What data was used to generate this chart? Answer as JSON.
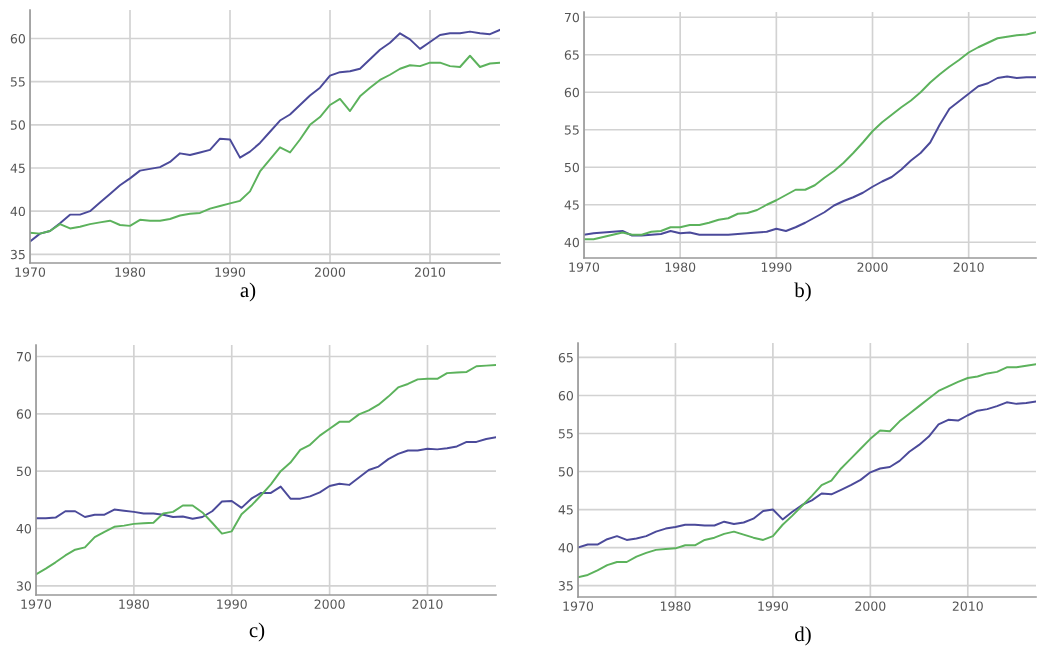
{
  "chart_data": [
    {
      "type": "line",
      "x": [
        1970,
        1971,
        1972,
        1973,
        1974,
        1975,
        1976,
        1977,
        1978,
        1979,
        1980,
        1981,
        1982,
        1983,
        1984,
        1985,
        1986,
        1987,
        1988,
        1989,
        1990,
        1991,
        1992,
        1993,
        1994,
        1995,
        1996,
        1997,
        1998,
        1999,
        2000,
        2001,
        2002,
        2003,
        2004,
        2005,
        2006,
        2007,
        2008,
        2009,
        2010,
        2011,
        2012,
        2013,
        2014,
        2015,
        2016,
        2017
      ],
      "series": [
        {
          "color": "#4b4a9a",
          "values": [
            36.5,
            37.4,
            37.7,
            38.6,
            39.6,
            39.6,
            40,
            41,
            42,
            43,
            43.8,
            44.7,
            44.9,
            45.1,
            45.7,
            46.7,
            46.5,
            46.8,
            47.1,
            48.4,
            48.3,
            46.2,
            46.9,
            47.9,
            49.2,
            50.5,
            51.2,
            52.3,
            53.4,
            54.3,
            55.7,
            56.1,
            56.2,
            56.5,
            57.6,
            58.7,
            59.5,
            60.6,
            59.9,
            58.8,
            59.6,
            60.4,
            60.6,
            60.6,
            60.8,
            60.6,
            60.5,
            61
          ]
        },
        {
          "color": "#5cb25c",
          "values": [
            37.5,
            37.4,
            37.7,
            38.5,
            38,
            38.2,
            38.5,
            38.7,
            38.9,
            38.4,
            38.3,
            39,
            38.9,
            38.9,
            39.1,
            39.5,
            39.7,
            39.8,
            40.3,
            40.6,
            40.9,
            41.2,
            42.3,
            44.6,
            46,
            47.4,
            46.8,
            48.3,
            50,
            50.9,
            52.3,
            53,
            51.6,
            53.3,
            54.3,
            55.2,
            55.8,
            56.5,
            56.9,
            56.8,
            57.2,
            57.2,
            56.8,
            56.7,
            58,
            56.7,
            57.1,
            57.2
          ]
        }
      ],
      "xlim": [
        1970,
        2017
      ],
      "xticks": [
        1970,
        1980,
        1990,
        2000,
        2010
      ],
      "ylim": [
        34,
        63.3
      ],
      "yticks": [
        35,
        40,
        45,
        50,
        55,
        60
      ],
      "grid": true,
      "annotations": [
        "a)"
      ]
    },
    {
      "type": "line",
      "x": [
        1970,
        1971,
        1972,
        1973,
        1974,
        1975,
        1976,
        1977,
        1978,
        1979,
        1980,
        1981,
        1982,
        1983,
        1984,
        1985,
        1986,
        1987,
        1988,
        1989,
        1990,
        1991,
        1992,
        1993,
        1994,
        1995,
        1996,
        1997,
        1998,
        1999,
        2000,
        2001,
        2002,
        2003,
        2004,
        2005,
        2006,
        2007,
        2008,
        2009,
        2010,
        2011,
        2012,
        2013,
        2014,
        2015,
        2016,
        2017
      ],
      "series": [
        {
          "color": "#4b4a9a",
          "values": [
            41,
            41.2,
            41.3,
            41.4,
            41.5,
            40.9,
            40.9,
            41,
            41.1,
            41.5,
            41.2,
            41.3,
            41,
            41,
            41,
            41,
            41.1,
            41.2,
            41.3,
            41.4,
            41.8,
            41.5,
            42,
            42.6,
            43.3,
            44,
            44.9,
            45.5,
            46,
            46.6,
            47.4,
            48.1,
            48.7,
            49.7,
            50.9,
            51.9,
            53.3,
            55.7,
            57.8,
            58.8,
            59.8,
            60.8,
            61.2,
            61.9,
            62.1,
            61.9,
            62,
            62
          ]
        },
        {
          "color": "#5cb25c",
          "values": [
            40.4,
            40.4,
            40.7,
            41,
            41.3,
            41,
            41,
            41.4,
            41.5,
            42,
            42,
            42.3,
            42.3,
            42.6,
            43,
            43.2,
            43.8,
            43.9,
            44.3,
            45,
            45.6,
            46.3,
            47,
            47,
            47.6,
            48.6,
            49.5,
            50.6,
            51.9,
            53.3,
            54.8,
            56,
            57,
            58,
            58.9,
            60,
            61.3,
            62.4,
            63.4,
            64.3,
            65.3,
            66,
            66.6,
            67.2,
            67.4,
            67.6,
            67.7,
            68
          ]
        }
      ],
      "xlim": [
        1970,
        2017
      ],
      "xticks": [
        1970,
        1980,
        1990,
        2000,
        2010
      ],
      "ylim": [
        37.9,
        70.7
      ],
      "yticks": [
        40,
        45,
        50,
        55,
        60,
        65,
        70
      ],
      "grid": true,
      "annotations": [
        "b)"
      ]
    },
    {
      "type": "line",
      "x": [
        1970,
        1971,
        1972,
        1973,
        1974,
        1975,
        1976,
        1977,
        1978,
        1979,
        1980,
        1981,
        1982,
        1983,
        1984,
        1985,
        1986,
        1987,
        1988,
        1989,
        1990,
        1991,
        1992,
        1993,
        1994,
        1995,
        1996,
        1997,
        1998,
        1999,
        2000,
        2001,
        2002,
        2003,
        2004,
        2005,
        2006,
        2007,
        2008,
        2009,
        2010,
        2011,
        2012,
        2013,
        2014,
        2015,
        2016,
        2017
      ],
      "series": [
        {
          "color": "#4b4a9a",
          "values": [
            41.8,
            41.8,
            41.9,
            43,
            43,
            42,
            42.4,
            42.4,
            43.3,
            43.1,
            42.9,
            42.6,
            42.6,
            42.4,
            42,
            42.1,
            41.7,
            42,
            43,
            44.7,
            44.8,
            43.6,
            45.2,
            46.2,
            46.2,
            47.3,
            45.2,
            45.2,
            45.6,
            46.3,
            47.4,
            47.8,
            47.6,
            48.9,
            50.2,
            50.8,
            52.1,
            53,
            53.6,
            53.6,
            53.9,
            53.8,
            54,
            54.3,
            55.1,
            55.1,
            55.6,
            55.9
          ]
        },
        {
          "color": "#5cb25c",
          "values": [
            32,
            33,
            34.1,
            35.3,
            36.3,
            36.7,
            38.5,
            39.4,
            40.3,
            40.5,
            40.8,
            40.9,
            41,
            42.6,
            42.9,
            44,
            44,
            42.8,
            41,
            39.1,
            39.5,
            42.5,
            44,
            45.8,
            47.7,
            50,
            51.5,
            53.7,
            54.6,
            56.2,
            57.4,
            58.6,
            58.6,
            59.9,
            60.6,
            61.6,
            63,
            64.6,
            65.2,
            66,
            66.1,
            66.1,
            67.1,
            67.2,
            67.3,
            68.3,
            68.4,
            68.5
          ]
        }
      ],
      "xlim": [
        1970,
        2017
      ],
      "xticks": [
        1970,
        1980,
        1990,
        2000,
        2010
      ],
      "ylim": [
        28.4,
        72
      ],
      "yticks": [
        30,
        40,
        50,
        60,
        70
      ],
      "grid": true,
      "annotations": [
        "c)"
      ]
    },
    {
      "type": "line",
      "x": [
        1970,
        1971,
        1972,
        1973,
        1974,
        1975,
        1976,
        1977,
        1978,
        1979,
        1980,
        1981,
        1982,
        1983,
        1984,
        1985,
        1986,
        1987,
        1988,
        1989,
        1990,
        1991,
        1992,
        1993,
        1994,
        1995,
        1996,
        1997,
        1998,
        1999,
        2000,
        2001,
        2002,
        2003,
        2004,
        2005,
        2006,
        2007,
        2008,
        2009,
        2010,
        2011,
        2012,
        2013,
        2014,
        2015,
        2016,
        2017
      ],
      "series": [
        {
          "color": "#4b4a9a",
          "values": [
            40,
            40.4,
            40.4,
            41.1,
            41.5,
            41,
            41.2,
            41.5,
            42.1,
            42.5,
            42.7,
            43,
            43,
            42.9,
            42.9,
            43.4,
            43.1,
            43.3,
            43.8,
            44.8,
            45,
            43.7,
            44.7,
            45.6,
            46.2,
            47.1,
            47,
            47.6,
            48.2,
            48.9,
            49.9,
            50.4,
            50.6,
            51.4,
            52.6,
            53.5,
            54.6,
            56.2,
            56.8,
            56.7,
            57.4,
            58,
            58.2,
            58.6,
            59.1,
            58.9,
            59,
            59.2
          ]
        },
        {
          "color": "#5cb25c",
          "values": [
            36.1,
            36.4,
            37,
            37.7,
            38.1,
            38.1,
            38.8,
            39.3,
            39.7,
            39.8,
            39.9,
            40.3,
            40.3,
            41,
            41.3,
            41.8,
            42.1,
            41.7,
            41.3,
            41,
            41.5,
            43,
            44.2,
            45.5,
            46.8,
            48.2,
            48.8,
            50.4,
            51.7,
            53,
            54.3,
            55.4,
            55.3,
            56.6,
            57.6,
            58.6,
            59.6,
            60.6,
            61.2,
            61.8,
            62.3,
            62.5,
            62.9,
            63.1,
            63.7,
            63.7,
            63.9,
            64.1
          ]
        }
      ],
      "xlim": [
        1970,
        2017
      ],
      "xticks": [
        1970,
        1980,
        1990,
        2000,
        2010
      ],
      "ylim": [
        33.5,
        66.9
      ],
      "yticks": [
        35,
        40,
        45,
        50,
        55,
        60,
        65
      ],
      "grid": true,
      "annotations": [
        "d)"
      ]
    }
  ]
}
